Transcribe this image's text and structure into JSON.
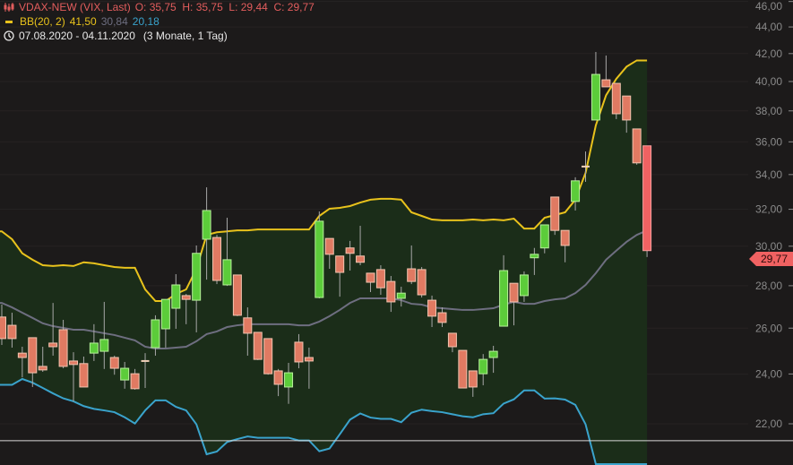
{
  "legend": {
    "instrument": "VDAX-NEW (VIX, Last)",
    "ohlc": "O: 35,75  H: 35,75  L: 29,44  C: 29,77",
    "indicator": "BB(20, 2)",
    "bb_upper": "41,50",
    "bb_mid": "30,84",
    "bb_lower": "20,18",
    "range": "07.08.2020 - 04.11.2020",
    "period": "(3 Monate, 1 Tag)"
  },
  "price_tag": "29,77",
  "colors": {
    "up": "#5ccc3a",
    "down": "#e07a62",
    "last": "#f06262",
    "upper": "#e8c21c",
    "mid": "#6e6e80",
    "lower": "#3aa3cc",
    "band_fill": "#1b2d19",
    "background": "#1c1a1a"
  },
  "chart_data": {
    "type": "candlestick",
    "yscale": "log",
    "ylim": [
      21.0,
      46.0
    ],
    "grid": true,
    "ytick_labels": [
      "46,00",
      "44,00",
      "42,00",
      "40,00",
      "38,00",
      "36,00",
      "34,00",
      "32,00",
      "30,00",
      "28,00",
      "26,00",
      "24,00",
      "22,00"
    ],
    "yticks": [
      46,
      44,
      42,
      40,
      38,
      36,
      34,
      32,
      30,
      28,
      26,
      24,
      22
    ],
    "horizontal_line": 21.36,
    "candles": [
      [
        26.51,
        27.09,
        25.25,
        25.53
      ],
      [
        26.13,
        26.71,
        25.13,
        25.53
      ],
      [
        24.89,
        25.17,
        23.86,
        24.7
      ],
      [
        25.57,
        25.57,
        23.46,
        24.05
      ],
      [
        24.32,
        25.17,
        24.09,
        24.17
      ],
      [
        25.33,
        27.17,
        24.78,
        25.17
      ],
      [
        25.93,
        26.38,
        24.24,
        24.32
      ],
      [
        24.55,
        24.93,
        22.88,
        24.4
      ],
      [
        24.44,
        24.74,
        23.46,
        23.46
      ],
      [
        24.89,
        26.18,
        24.55,
        25.33
      ],
      [
        24.97,
        27.22,
        24.21,
        25.49
      ],
      [
        24.7,
        24.78,
        23.97,
        24.24
      ],
      [
        23.75,
        24.51,
        23.39,
        24.24
      ],
      [
        24.01,
        24.21,
        23.35,
        23.39
      ],
      [
        24.55,
        24.89,
        23.42,
        24.55
      ],
      [
        25.13,
        26.59,
        24.78,
        26.38
      ],
      [
        25.97,
        27.34,
        25.13,
        27.34
      ],
      [
        26.92,
        28.57,
        25.97,
        28.04
      ],
      [
        27.52,
        27.6,
        26.18,
        27.34
      ],
      [
        27.3,
        30.04,
        25.81,
        29.63
      ],
      [
        30.37,
        33.25,
        28.3,
        31.93
      ],
      [
        30.46,
        30.6,
        28.08,
        28.26
      ],
      [
        28.04,
        31.53,
        27.99,
        29.3
      ],
      [
        28.53,
        28.53,
        26.55,
        26.59
      ],
      [
        26.47,
        26.96,
        24.78,
        25.77
      ],
      [
        25.81,
        25.81,
        24.59,
        24.62
      ],
      [
        25.53,
        25.53,
        23.97,
        24.01
      ],
      [
        24.13,
        24.21,
        23.09,
        23.57
      ],
      [
        23.46,
        24.47,
        22.78,
        24.05
      ],
      [
        25.37,
        25.73,
        24.24,
        24.51
      ],
      [
        24.7,
        25.13,
        23.39,
        24.55
      ],
      [
        27.43,
        31.88,
        27.39,
        31.34
      ],
      [
        30.41,
        30.41,
        28.84,
        29.58
      ],
      [
        29.49,
        29.49,
        27.47,
        28.66
      ],
      [
        29.91,
        30.28,
        28.75,
        29.63
      ],
      [
        29.49,
        31.09,
        29.02,
        29.17
      ],
      [
        28.62,
        28.62,
        27.69,
        28.17
      ],
      [
        28.8,
        29.02,
        27.56,
        27.9
      ],
      [
        28.21,
        28.48,
        26.75,
        27.22
      ],
      [
        27.39,
        27.95,
        27.0,
        27.64
      ],
      [
        28.84,
        30.04,
        28.08,
        28.21
      ],
      [
        28.8,
        28.93,
        27.43,
        27.56
      ],
      [
        27.3,
        27.52,
        26.05,
        26.55
      ],
      [
        26.71,
        26.96,
        26.05,
        26.26
      ],
      [
        25.77,
        25.77,
        24.93,
        25.17
      ],
      [
        25.01,
        25.01,
        23.42,
        23.42
      ],
      [
        24.13,
        24.13,
        23.06,
        23.46
      ],
      [
        24.01,
        24.85,
        23.53,
        24.62
      ],
      [
        24.7,
        25.21,
        24.05,
        24.97
      ],
      [
        26.09,
        29.53,
        26.09,
        28.75
      ],
      [
        28.12,
        28.12,
        26.13,
        27.22
      ],
      [
        27.52,
        28.71,
        27.22,
        28.53
      ],
      [
        29.4,
        29.91,
        28.53,
        29.58
      ],
      [
        29.91,
        31.14,
        29.63,
        31.14
      ],
      [
        32.69,
        32.69,
        30.6,
        30.84
      ],
      [
        30.84,
        30.84,
        29.17,
        30.04
      ],
      [
        32.44,
        33.84,
        31.93,
        33.63
      ],
      [
        34.48,
        35.4,
        33.57,
        34.48
      ],
      [
        37.4,
        42.12,
        37.4,
        40.5
      ],
      [
        40.12,
        41.86,
        39.63,
        39.63
      ],
      [
        39.87,
        39.87,
        37.46,
        37.81
      ],
      [
        39.0,
        39.0,
        36.58,
        37.4
      ],
      [
        36.82,
        36.82,
        34.59,
        34.7
      ],
      [
        35.75,
        35.75,
        29.44,
        29.77
      ]
    ],
    "bb_upper": [
      30.79,
      30.37,
      29.63,
      29.3,
      29.02,
      28.98,
      29.02,
      28.98,
      29.17,
      29.12,
      29.02,
      28.93,
      28.89,
      28.89,
      27.82,
      27.26,
      27.26,
      27.6,
      27.82,
      28.84,
      30.6,
      30.74,
      30.79,
      30.84,
      30.84,
      30.89,
      30.89,
      30.89,
      30.89,
      30.89,
      30.89,
      31.63,
      32.03,
      32.08,
      32.18,
      32.38,
      32.54,
      32.59,
      32.59,
      32.54,
      31.83,
      31.63,
      31.43,
      31.39,
      31.39,
      31.39,
      31.43,
      31.39,
      31.43,
      31.39,
      31.48,
      30.94,
      30.94,
      31.53,
      31.68,
      31.83,
      32.54,
      34.1,
      37.05,
      39.05,
      40.19,
      41.05,
      41.5,
      41.5
    ],
    "bb_mid": [
      27.17,
      26.96,
      26.71,
      26.47,
      26.22,
      26.09,
      26.01,
      25.93,
      25.93,
      25.85,
      25.77,
      25.69,
      25.57,
      25.45,
      25.17,
      25.09,
      25.09,
      25.13,
      25.17,
      25.41,
      25.73,
      25.85,
      26.05,
      26.13,
      26.18,
      26.18,
      26.18,
      26.18,
      26.18,
      26.13,
      26.13,
      26.3,
      26.55,
      26.84,
      27.17,
      27.39,
      27.39,
      27.39,
      27.39,
      27.3,
      27.13,
      27.09,
      26.96,
      26.92,
      26.88,
      26.84,
      26.84,
      26.88,
      26.92,
      27.09,
      27.22,
      27.13,
      27.13,
      27.26,
      27.34,
      27.39,
      27.64,
      28.04,
      28.62,
      29.3,
      29.77,
      30.23,
      30.6,
      30.84
    ],
    "bb_lower": [
      23.55,
      23.55,
      23.79,
      23.64,
      23.42,
      23.2,
      23.0,
      22.88,
      22.69,
      22.58,
      22.52,
      22.45,
      22.25,
      22.01,
      22.52,
      22.92,
      22.92,
      22.66,
      22.52,
      21.98,
      20.86,
      20.96,
      21.31,
      21.42,
      21.52,
      21.47,
      21.47,
      21.47,
      21.47,
      21.37,
      21.37,
      20.97,
      21.07,
      21.6,
      22.16,
      22.4,
      22.24,
      22.19,
      22.19,
      22.06,
      22.43,
      22.55,
      22.49,
      22.45,
      22.37,
      22.29,
      22.25,
      22.37,
      22.41,
      22.79,
      22.96,
      23.32,
      23.32,
      22.99,
      23.0,
      22.95,
      22.74,
      21.98,
      20.19,
      19.55,
      19.35,
      19.41,
      19.7,
      20.18
    ]
  }
}
